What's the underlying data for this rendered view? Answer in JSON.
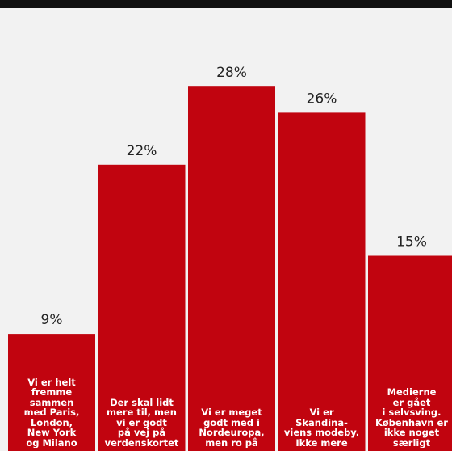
{
  "colors": {
    "bar": "#c1040f",
    "value_text": "#222222",
    "label_text": "#ffffff",
    "background": "#f2f2f2",
    "top_bar": "#111111"
  },
  "chart_data": {
    "type": "bar",
    "title": "",
    "xlabel": "",
    "ylabel": "",
    "ylim": [
      0,
      31
    ],
    "grid": false,
    "legend": "none",
    "categories": [
      "Vi er helt\nfremme\nsammen\nmed Paris,\nLondon,\nNew York\nog Milano",
      "Der skal lidt\nmere til, men\nvi er godt\npå vej på\nverdenskortet",
      "Vi er meget\ngodt med i\nNordeuropa,\nmen ro på",
      "Vi er\nSkandina-\nviens modeby.\nIkke mere",
      "Medierne\ner gået\ni selvsving.\nKøbenhavn er\nikke noget\nsærligt"
    ],
    "values": [
      9,
      22,
      28,
      26,
      15
    ],
    "value_labels": [
      "9%",
      "22%",
      "28%",
      "26%",
      "15%"
    ]
  }
}
